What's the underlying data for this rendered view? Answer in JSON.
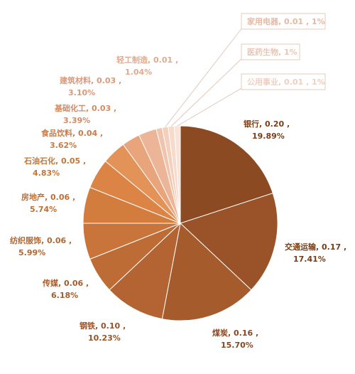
{
  "chart_data": {
    "type": "pie",
    "title": "",
    "slices": [
      {
        "label": "银行",
        "value": 0.2,
        "value_text": "0.20",
        "percent": "19.89%",
        "color": "#8B4A22"
      },
      {
        "label": "交通运输",
        "value": 0.17,
        "value_text": "0.17",
        "percent": "17.41%",
        "color": "#9A5228"
      },
      {
        "label": "煤炭",
        "value": 0.16,
        "value_text": "0.16",
        "percent": "15.70%",
        "color": "#A65B2C"
      },
      {
        "label": "钢铁",
        "value": 0.1,
        "value_text": "0.10",
        "percent": "10.23%",
        "color": "#B36432"
      },
      {
        "label": "传媒",
        "value": 0.06,
        "value_text": "0.06",
        "percent": "6.18%",
        "color": "#BD6C36"
      },
      {
        "label": "纺织服饰",
        "value": 0.06,
        "value_text": "0.06",
        "percent": "5.99%",
        "color": "#C8743A"
      },
      {
        "label": "房地产",
        "value": 0.06,
        "value_text": "0.06",
        "percent": "5.74%",
        "color": "#D27C3E"
      },
      {
        "label": "石油石化",
        "value": 0.05,
        "value_text": "0.05",
        "percent": "4.83%",
        "color": "#DB8445"
      },
      {
        "label": "食品饮料",
        "value": 0.04,
        "value_text": "0.04",
        "percent": "3.62%",
        "color": "#E39357"
      },
      {
        "label": "基础化工",
        "value": 0.03,
        "value_text": "0.03",
        "percent": "3.39%",
        "color": "#E8A47A"
      },
      {
        "label": "建筑材料",
        "value": 0.03,
        "value_text": "0.03",
        "percent": "3.10%",
        "color": "#ECB597"
      },
      {
        "label": "轻工制造",
        "value": 0.01,
        "value_text": "0.01",
        "percent": "1.04%",
        "color": "#F0C4AC"
      },
      {
        "label": "家用电器",
        "value": 0.01,
        "value_text": "0.01",
        "percent": "1%",
        "color": "#F3CFBC"
      },
      {
        "label": "医药生物",
        "value": 0.01,
        "value_text": "",
        "percent": "1%",
        "color": "#F6DACB"
      },
      {
        "label": "公用事业",
        "value": 0.01,
        "value_text": "0.01",
        "percent": "1%",
        "color": "#F8E3D8"
      }
    ],
    "labels": [
      {
        "index": 0,
        "line1": "银行, 0.20 ,",
        "line2": "19.89%",
        "color": "#7A3E17"
      },
      {
        "index": 1,
        "line1": "交通运输, 0.17 ,",
        "line2": "17.41%",
        "color": "#7A3E17"
      },
      {
        "index": 2,
        "line1": "煤炭, 0.16 ,",
        "line2": "15.70%",
        "color": "#8A4620"
      },
      {
        "index": 3,
        "line1": "钢铁, 0.10 ,",
        "line2": "10.23%",
        "color": "#9A5228"
      },
      {
        "index": 4,
        "line1": "传媒, 0.06 ,",
        "line2": "6.18%",
        "color": "#A65B2C"
      },
      {
        "index": 5,
        "line1": "纺织服饰, 0.06 ,",
        "line2": "5.99%",
        "color": "#B3672F"
      },
      {
        "index": 6,
        "line1": "房地产, 0.06 ,",
        "line2": "5.74%",
        "color": "#BF6F33"
      },
      {
        "index": 7,
        "line1": "石油石化, 0.05 ,",
        "line2": "4.83%",
        "color": "#C57637"
      },
      {
        "index": 8,
        "line1": "食品饮料, 0.04 ,",
        "line2": "3.62%",
        "color": "#CA7A45"
      },
      {
        "index": 9,
        "line1": "基础化工, 0.03 ,",
        "line2": "3.39%",
        "color": "#D48A61"
      },
      {
        "index": 10,
        "line1": "建筑材料, 0.03 ,",
        "line2": "3.10%",
        "color": "#DA9A79"
      },
      {
        "index": 11,
        "line1": "轻工制造, 0.01 ,",
        "line2": "1.04%",
        "color": "#E0AA8E"
      },
      {
        "index": 12,
        "line1": "家用电器, 0.01 , 1%",
        "line2": "",
        "color": "#E6B9A3"
      },
      {
        "index": 13,
        "line1": "医药生物, 1%",
        "line2": "",
        "color": "#EAC5B3"
      },
      {
        "index": 14,
        "line1": "公用事业, 0.01 , 1%",
        "line2": "",
        "color": "#EED0C2"
      }
    ]
  }
}
